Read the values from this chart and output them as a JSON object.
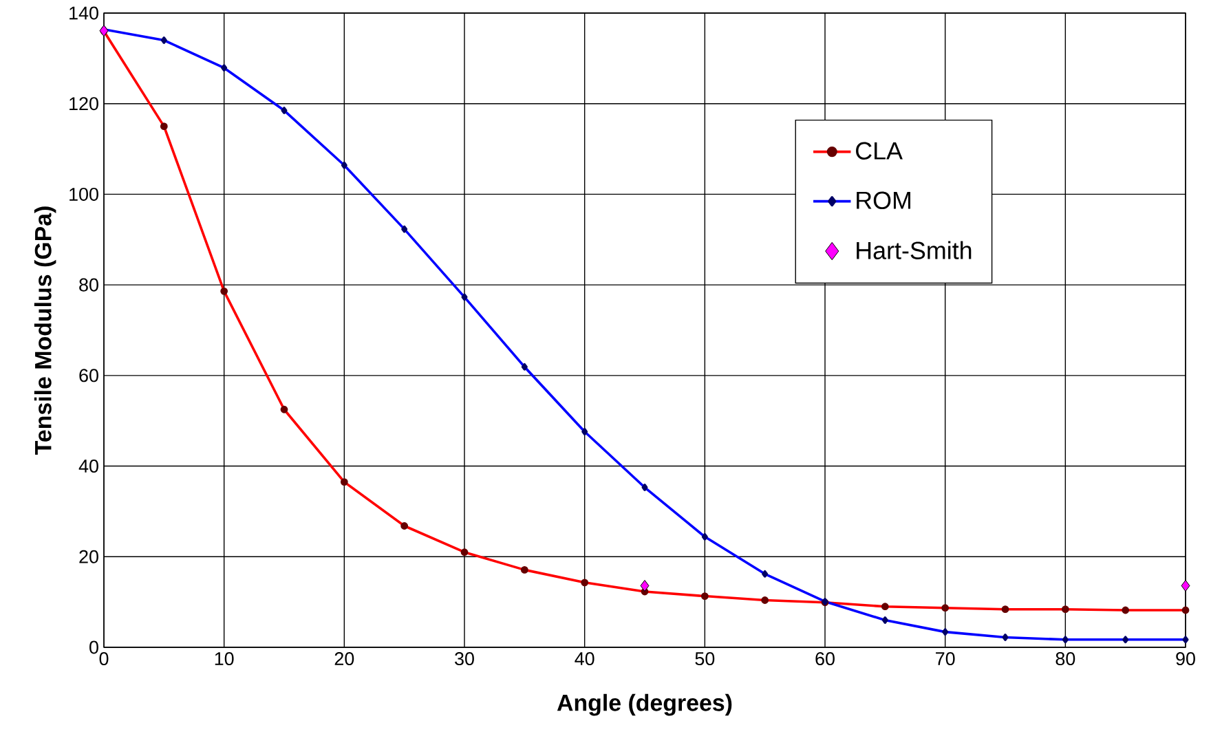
{
  "chart_data": {
    "type": "line",
    "xlabel": "Angle (degrees)",
    "ylabel": "Tensile Modulus (GPa)",
    "x": [
      0,
      5,
      10,
      15,
      20,
      25,
      30,
      35,
      40,
      45,
      50,
      55,
      60,
      65,
      70,
      75,
      80,
      85,
      90
    ],
    "xlim": [
      0,
      90
    ],
    "xticks": [
      0,
      10,
      20,
      30,
      40,
      50,
      60,
      70,
      80,
      90
    ],
    "ylim": [
      0,
      140
    ],
    "yticks": [
      0,
      20,
      40,
      60,
      80,
      100,
      120,
      140
    ],
    "grid": true,
    "legend": "right",
    "series": [
      {
        "name": "CLA",
        "color": "#ff0000",
        "marker": "circle",
        "line_style": "solid",
        "values": [
          136,
          115,
          78.6,
          52.5,
          36.5,
          26.8,
          21.0,
          17.1,
          14.3,
          12.3,
          11.3,
          10.4,
          9.9,
          9.0,
          8.7,
          8.4,
          8.4,
          8.2,
          8.2
        ]
      },
      {
        "name": "ROM",
        "color": "#0000ff",
        "marker": "diamond",
        "line_style": "solid",
        "values": [
          136.4,
          134.0,
          127.9,
          118.5,
          106.4,
          92.3,
          77.3,
          61.9,
          47.6,
          35.3,
          24.4,
          16.2,
          10.1,
          6.0,
          3.4,
          2.2,
          1.7,
          1.7,
          1.7
        ]
      },
      {
        "name": "Hart-Smith",
        "type": "scatter",
        "color": "#ff00ff",
        "marker": "diamond",
        "x": [
          0,
          45,
          90
        ],
        "values": [
          136.1,
          13.6,
          13.6
        ]
      }
    ]
  }
}
